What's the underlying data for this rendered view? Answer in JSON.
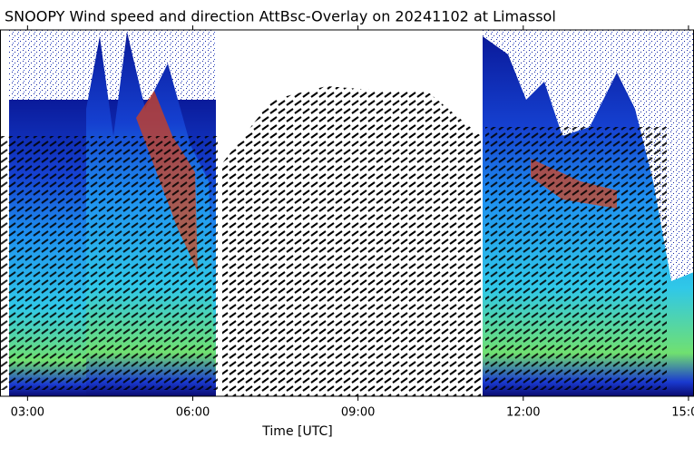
{
  "chart_data": {
    "type": "lidar-overlay",
    "title": "SNOOPY Wind speed and direction AttBsc-Overlay on 20241102 at Limassol",
    "xlabel": "Time [UTC]",
    "xlim": [
      2.5,
      15.1
    ],
    "xticks": [
      {
        "value": 3,
        "label": "03:00"
      },
      {
        "value": 6,
        "label": "06:00"
      },
      {
        "value": 9,
        "label": "09:00"
      },
      {
        "value": 12,
        "label": "12:00"
      },
      {
        "value": 15,
        "label": "15:00"
      }
    ]
  }
}
